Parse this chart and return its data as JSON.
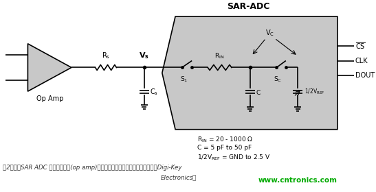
{
  "title": "SAR-ADC",
  "bg_color": "#ffffff",
  "sar_box_color": "#c8c8c8",
  "circuit_line_color": "#000000",
  "caption_line1": "图2：驱动SAR ADC 的运算放大器(op amp)，带有输出稳定滤波器，（图片来源：Digi-Key",
  "caption_line2": "Electronics）",
  "watermark": "www.cntronics.com",
  "watermark_color": "#00aa00",
  "labels": {
    "cs": "CS",
    "clk": "CLK",
    "dout": "DOUT",
    "op_amp": "Op Amp",
    "vs": "Vs",
    "rs": "Rs",
    "cs_cap": "Cs",
    "rin": "RIN",
    "s1": "S1",
    "sc": "Sc",
    "c_cap": "C",
    "vc": "Vc",
    "half_vref": "1/2VREF"
  }
}
